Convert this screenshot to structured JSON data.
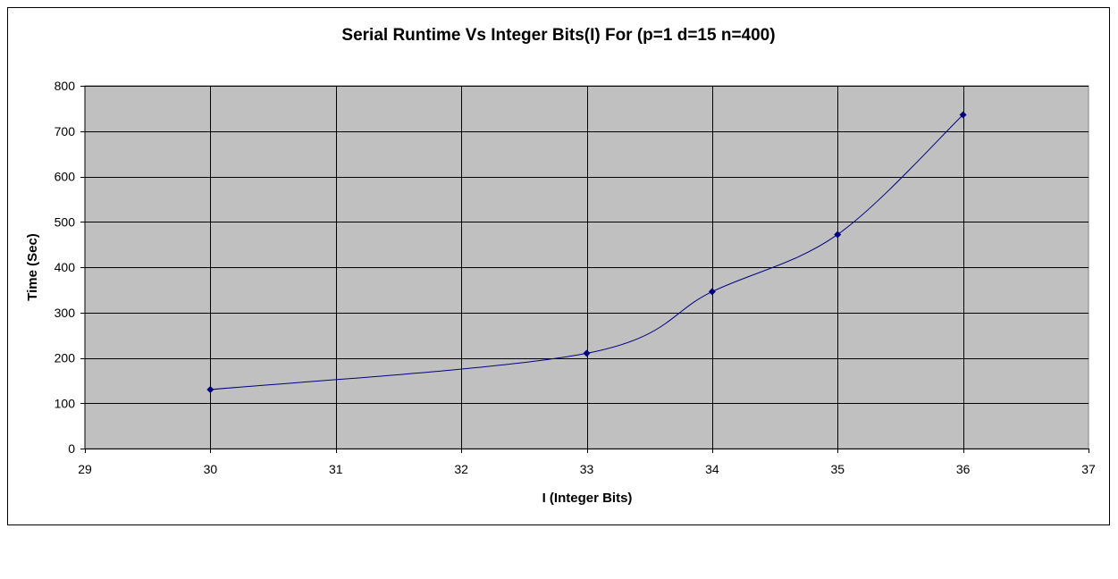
{
  "chart_data": {
    "type": "line",
    "title": "Serial Runtime Vs Integer Bits(I)  For  (p=1 d=15 n=400)",
    "xlabel": "I (Integer Bits)",
    "ylabel": "Time (Sec)",
    "xlim": [
      29,
      37
    ],
    "ylim": [
      0,
      800
    ],
    "xticks": [
      29,
      30,
      31,
      32,
      33,
      34,
      35,
      36,
      37
    ],
    "yticks": [
      0,
      100,
      200,
      300,
      400,
      500,
      600,
      700,
      800
    ],
    "grid": true,
    "legend": "none",
    "smooth": true,
    "series": [
      {
        "x": [
          30,
          33,
          34,
          35,
          36
        ],
        "y": [
          130,
          210,
          346,
          472,
          736
        ]
      }
    ],
    "colors": {
      "plot_background": "#c0c0c0",
      "gridline": "#000000",
      "line": "#000080",
      "marker": "#000080"
    }
  }
}
